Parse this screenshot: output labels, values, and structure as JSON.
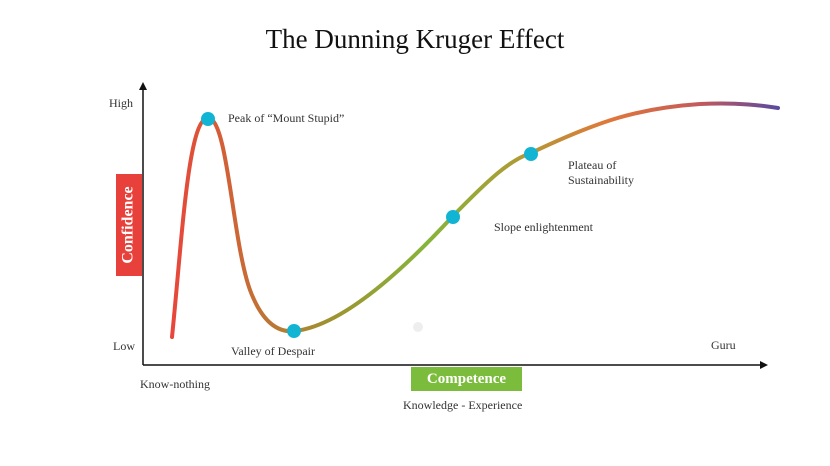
{
  "title": "The Dunning Kruger Effect",
  "axes": {
    "y_high": "High",
    "y_low": "Low",
    "y_label": "Confidence",
    "x_label": "Competence",
    "x_start": "Know-nothing",
    "x_end": "Guru",
    "x_caption": "Knowledge - Experience"
  },
  "points": {
    "peak": "Peak of “Mount Stupid”",
    "valley": "Valley of Despair",
    "slope": "Slope enlightenment",
    "plateau_line1": "Plateau of",
    "plateau_line2": "Sustainability"
  },
  "colors": {
    "confidence_box": "#e8403a",
    "competence_box": "#7cbc3c",
    "point_marker": "#12b4d4",
    "curve_gradient": [
      "#e8463a",
      "#c96a36",
      "#a0902f",
      "#86b43a",
      "#b09a35",
      "#e0783a",
      "#c45a5a",
      "#5a4aa0"
    ]
  }
}
